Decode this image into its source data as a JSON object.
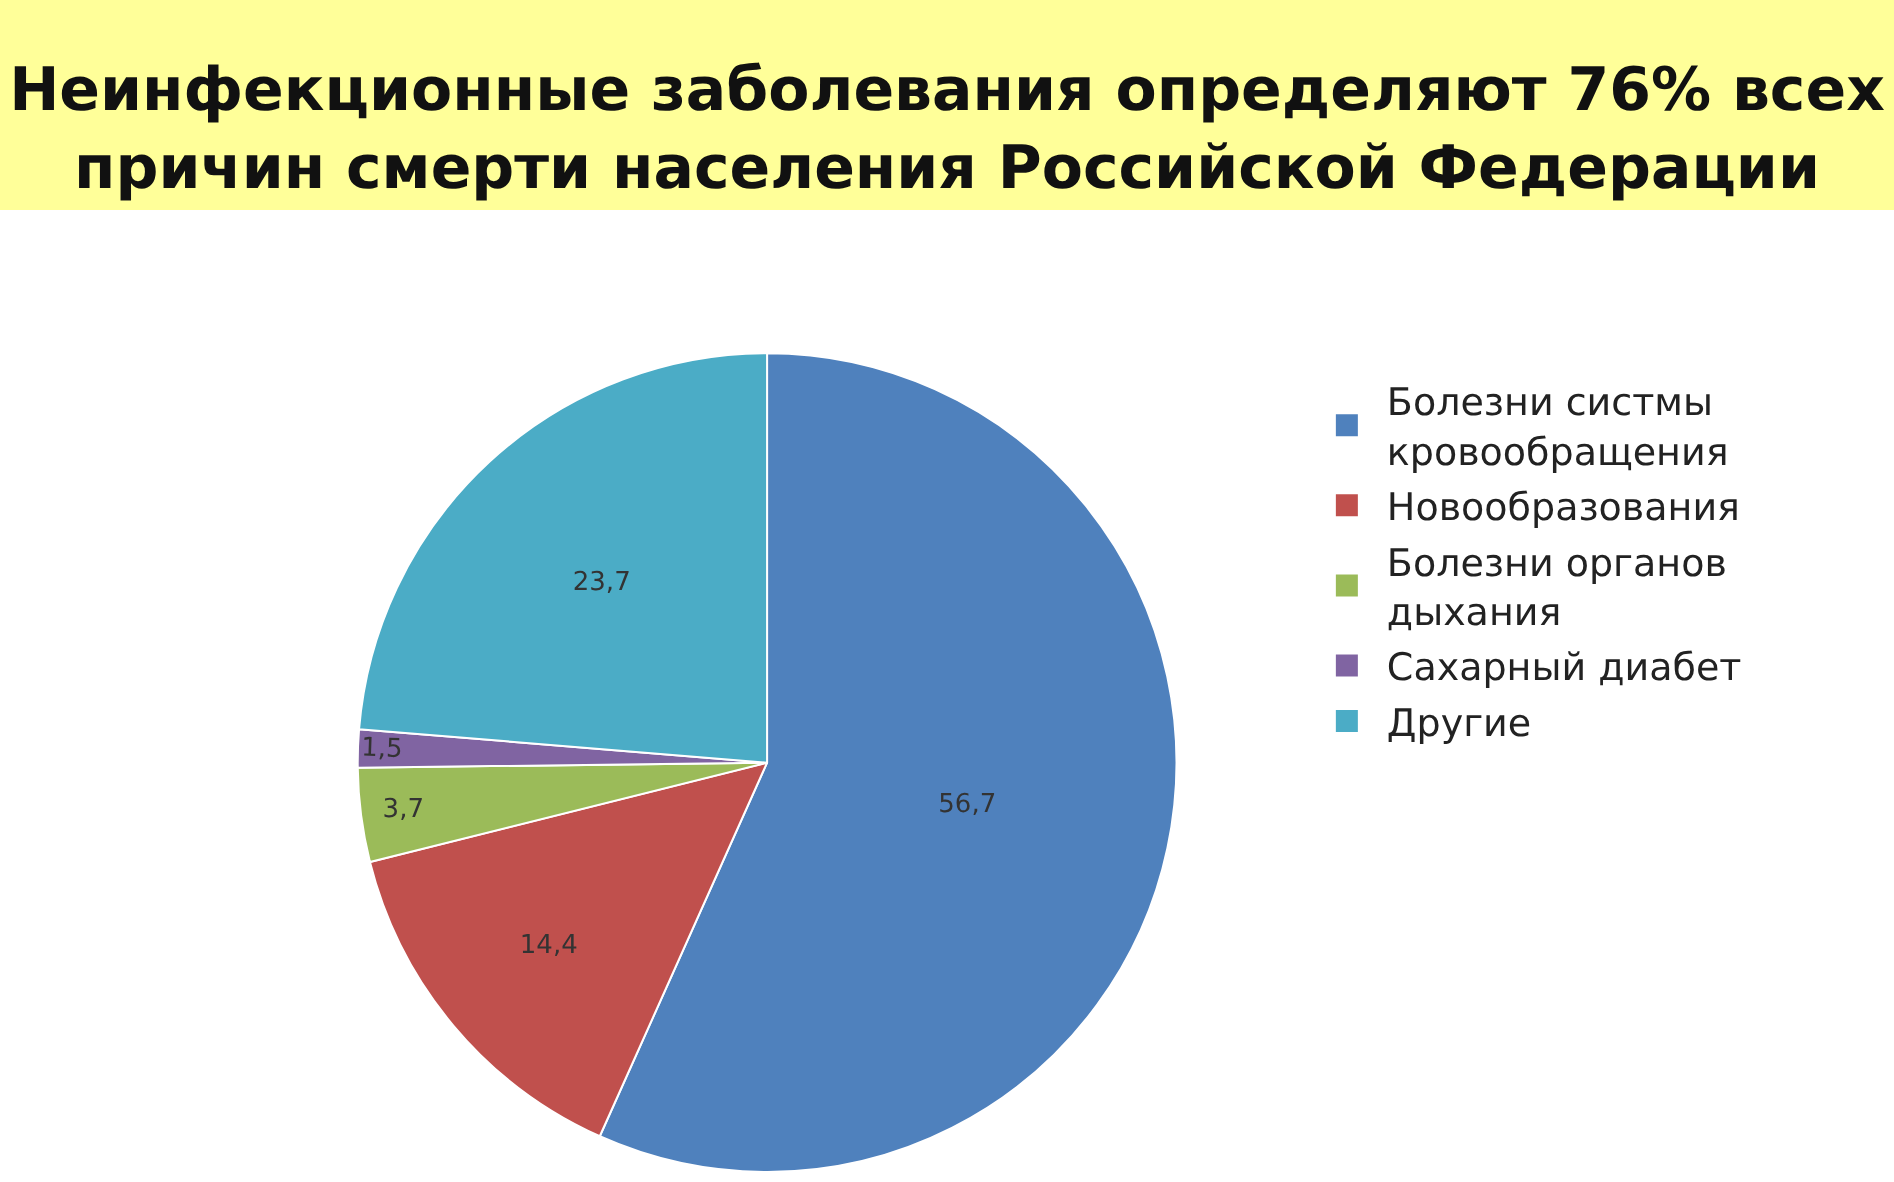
{
  "chart_data": {
    "type": "pie",
    "title": "Неинфекционные заболевания определяют 76% всех причин смерти населения Российской Федерации",
    "categories": [
      "Болезни систмы кровообращения",
      "Новообразования",
      "Болезни органов дыхания",
      "Сахарный диабет",
      "Другие"
    ],
    "values": [
      56.7,
      14.4,
      3.7,
      1.5,
      23.7
    ],
    "value_labels": [
      "56,7",
      "14,4",
      "3,7",
      "1,5",
      "23,7"
    ],
    "colors": [
      "#4f81bd",
      "#c0504d",
      "#9bbb59",
      "#8064a2",
      "#4bacc6"
    ],
    "legend": "right"
  }
}
